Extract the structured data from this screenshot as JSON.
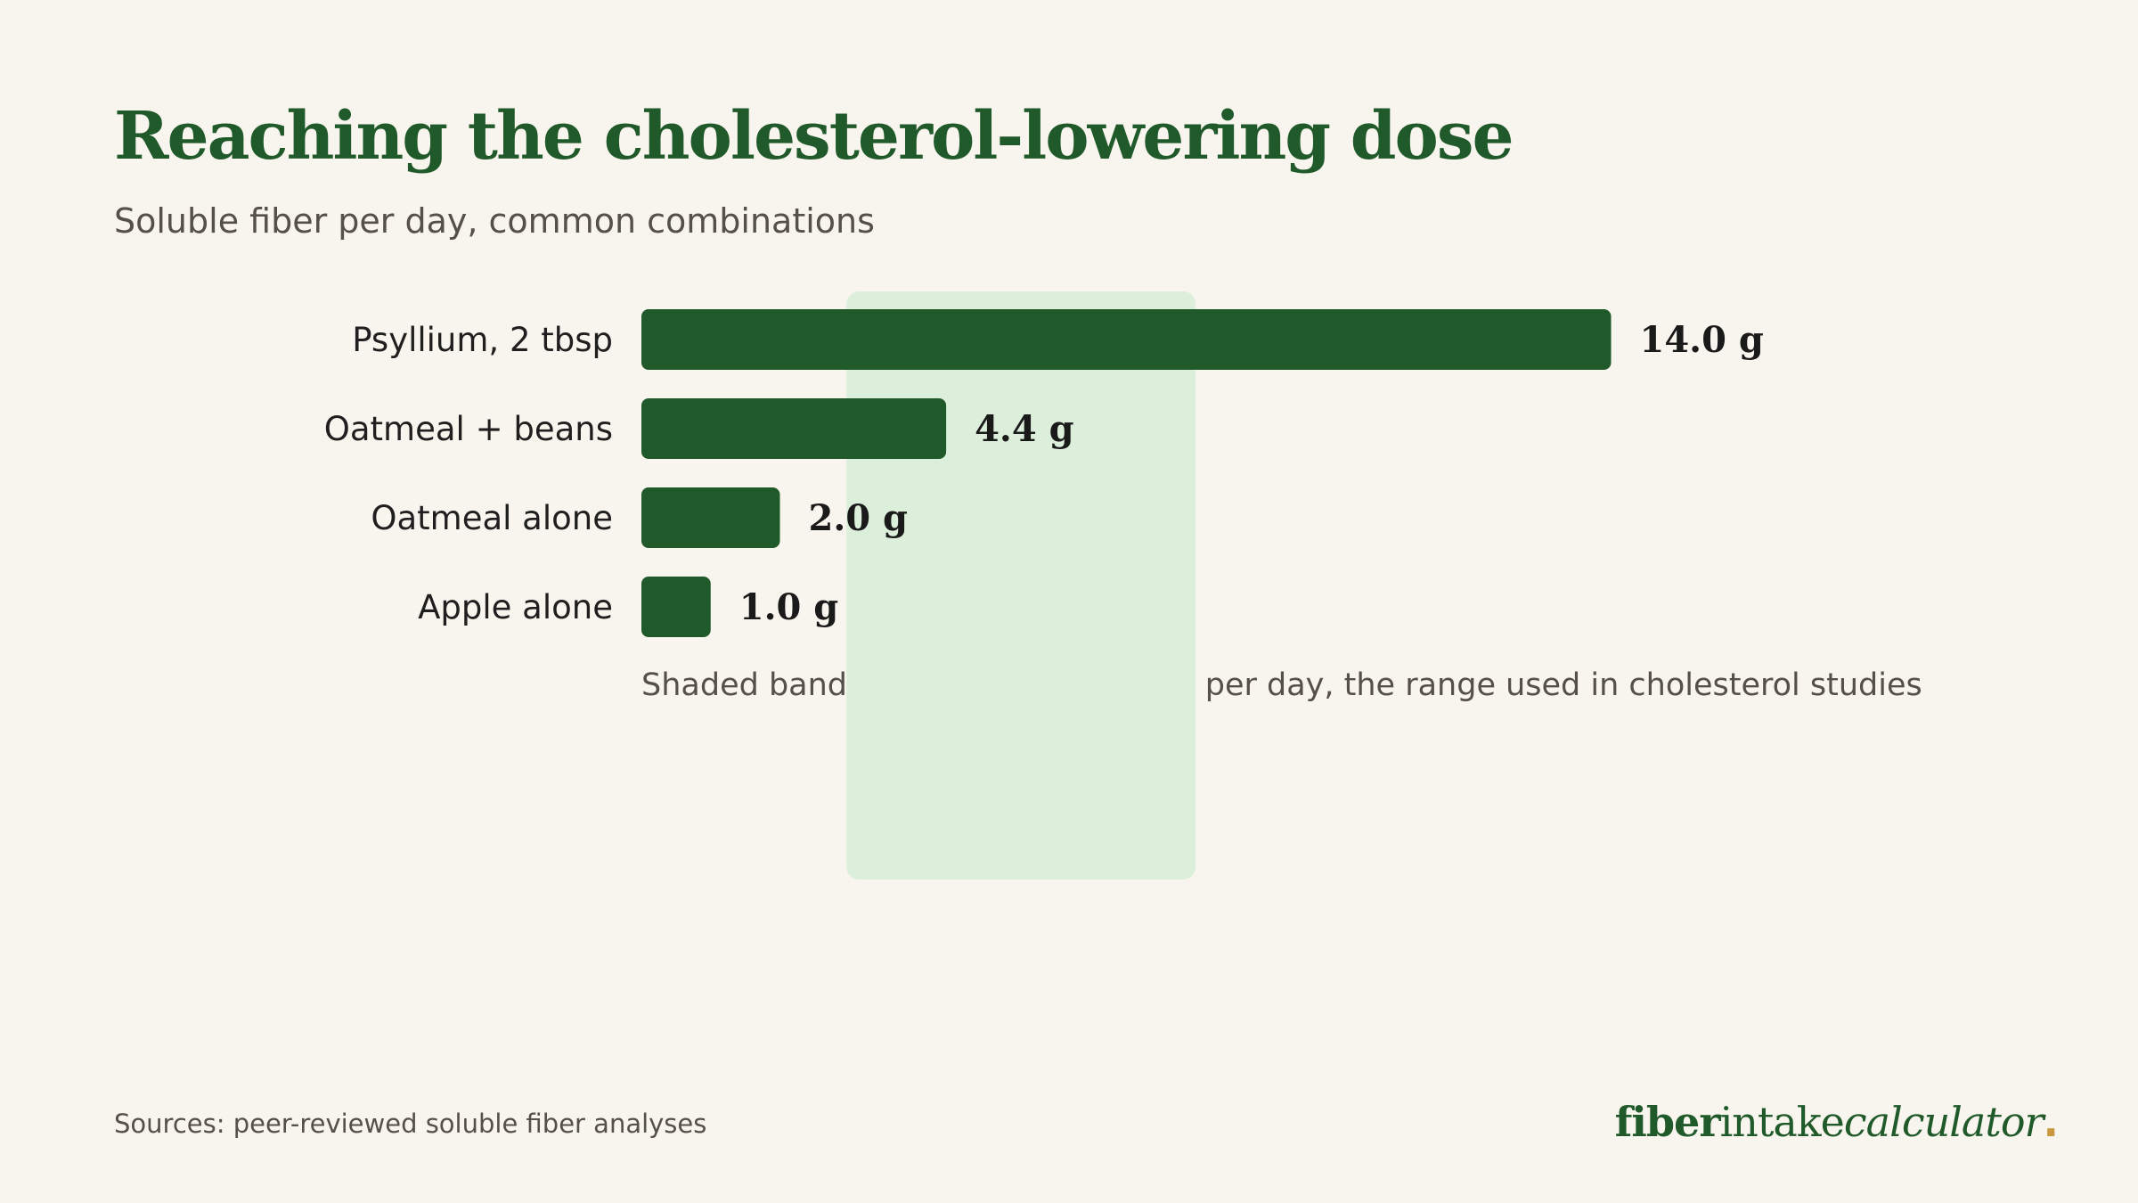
{
  "title": "Reaching the cholesterol-lowering dose",
  "subtitle": "Soluble fiber per day, common combinations",
  "chart_data": {
    "type": "bar",
    "orientation": "horizontal",
    "categories": [
      "Psyllium, 2 tbsp",
      "Oatmeal + beans",
      "Oatmeal alone",
      "Apple alone"
    ],
    "values": [
      14.0,
      4.4,
      2.0,
      1.0
    ],
    "value_labels": [
      "14.0 g",
      "4.4 g",
      "2.0 g",
      "1.0 g"
    ],
    "unit": "g",
    "shaded_range": [
      3,
      8
    ],
    "annotation": "Shaded band: 3–8 g of soluble fiber per day, the range used in cholesterol studies",
    "xlim": [
      0,
      14
    ],
    "grid": false,
    "bar_color": "#215a2a",
    "band_color": "#dcefdb"
  },
  "footer": {
    "sources": "Sources: peer-reviewed soluble fiber analyses"
  },
  "logo": {
    "part1": "fiber",
    "part2": "intake",
    "part3": "calculator",
    "dot": "."
  }
}
